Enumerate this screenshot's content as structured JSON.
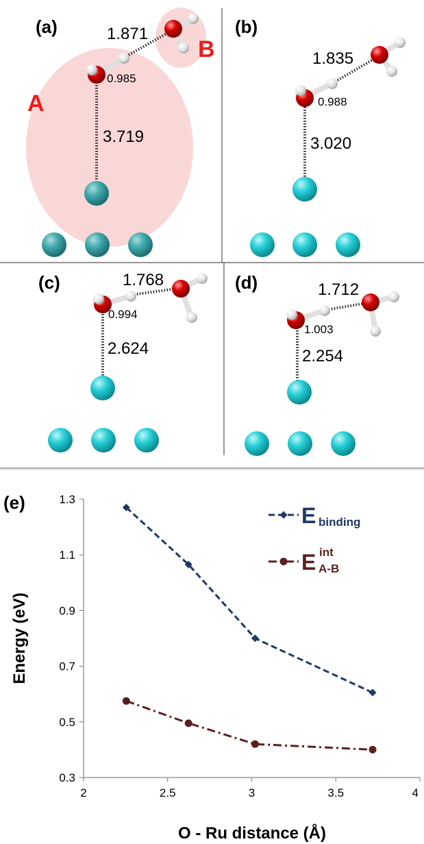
{
  "panels": {
    "a": {
      "label": "(a)",
      "d_ow": "1.871",
      "d_oh": "0.985",
      "d_oru": "3.719",
      "region_a": "A",
      "region_b": "B"
    },
    "b": {
      "label": "(b)",
      "d_ow": "1.835",
      "d_oh": "0.988",
      "d_oru": "3.020"
    },
    "c": {
      "label": "(c)",
      "d_ow": "1.768",
      "d_oh": "0.994",
      "d_oru": "2.624"
    },
    "d": {
      "label": "(d)",
      "d_ow": "1.712",
      "d_oh": "1.003",
      "d_oru": "2.254"
    }
  },
  "colors": {
    "oxygen": "#d40000",
    "hydrogen": "#e6e6e6",
    "ruthenium": "#26cfd6",
    "ruthenium_shaded": "#3fb0b3",
    "region_fill": "#f8d0d0",
    "region_text": "#ee1c1c",
    "series_binding": "#1f3864",
    "series_int": "#5b1f1f"
  },
  "chart_data": {
    "type": "line",
    "panel_label": "(e)",
    "xlabel": "O - Ru distance (Å)",
    "ylabel": "Energy (eV)",
    "xlim": [
      2,
      4
    ],
    "ylim": [
      0.3,
      1.3
    ],
    "xticks": [
      "2",
      "2.5",
      "3",
      "3.5",
      "4"
    ],
    "yticks": [
      "0.3",
      "0.5",
      "0.7",
      "0.9",
      "1.1",
      "1.3"
    ],
    "grid": false,
    "legend_position": "top-right",
    "series": [
      {
        "name": "E",
        "sub": "binding",
        "sup": "",
        "marker": "diamond",
        "dash": "dashed",
        "x": [
          2.254,
          2.624,
          3.02,
          3.719
        ],
        "y": [
          1.27,
          1.065,
          0.8,
          0.605
        ]
      },
      {
        "name": "E",
        "sub": "A-B",
        "sup": "int",
        "marker": "circle",
        "dash": "dash-dot",
        "x": [
          2.254,
          2.624,
          3.02,
          3.719
        ],
        "y": [
          0.575,
          0.495,
          0.42,
          0.4
        ]
      }
    ]
  }
}
